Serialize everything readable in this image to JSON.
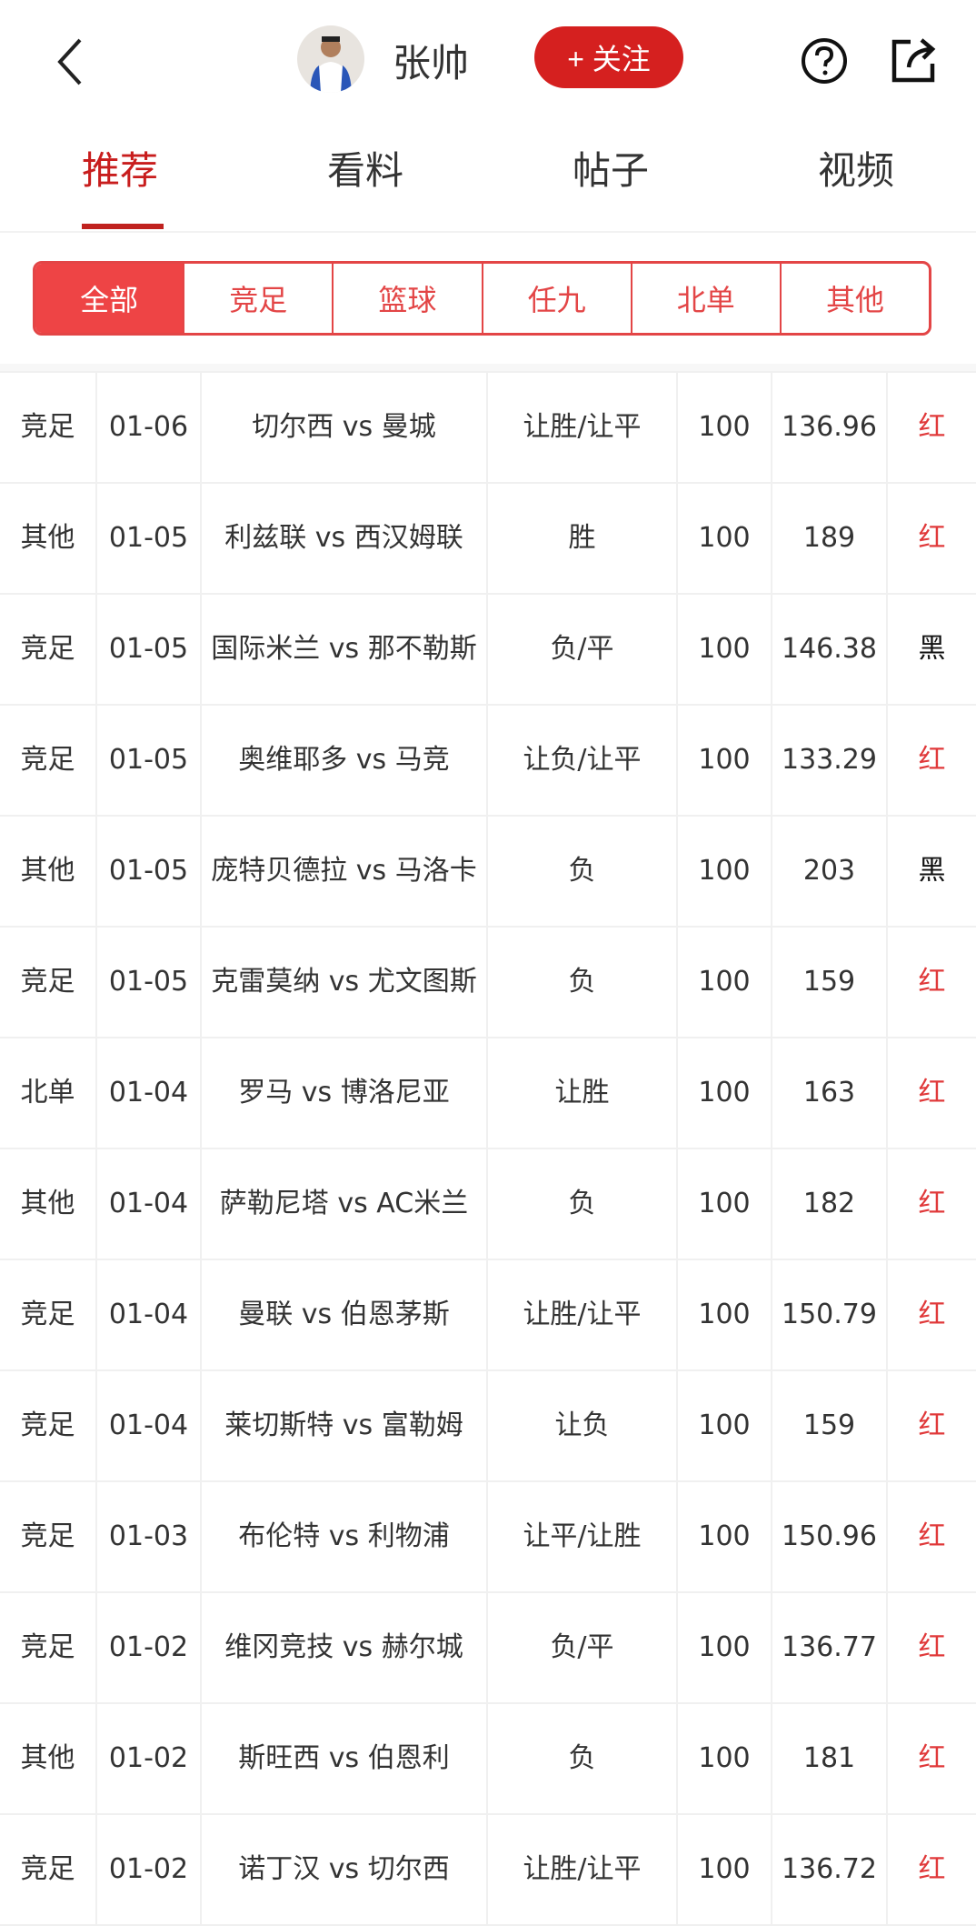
{
  "header": {
    "username": "张帅",
    "follow_label": "+ 关注"
  },
  "tabs": [
    {
      "label": "推荐"
    },
    {
      "label": "看料"
    },
    {
      "label": "帖子"
    },
    {
      "label": "视频"
    }
  ],
  "filters": [
    {
      "label": "全部"
    },
    {
      "label": "竞足"
    },
    {
      "label": "篮球"
    },
    {
      "label": "任九"
    },
    {
      "label": "北单"
    },
    {
      "label": "其他"
    }
  ],
  "rows": [
    [
      "竞足",
      "01-06",
      "切尔西 vs 曼城",
      "让胜/让平",
      "100",
      "136.96",
      "红"
    ],
    [
      "其他",
      "01-05",
      "利兹联 vs 西汉姆联",
      "胜",
      "100",
      "189",
      "红"
    ],
    [
      "竞足",
      "01-05",
      "国际米兰 vs 那不勒斯",
      "负/平",
      "100",
      "146.38",
      "黑"
    ],
    [
      "竞足",
      "01-05",
      "奥维耶多 vs 马竞",
      "让负/让平",
      "100",
      "133.29",
      "红"
    ],
    [
      "其他",
      "01-05",
      "庞特贝德拉 vs 马洛卡",
      "负",
      "100",
      "203",
      "黑"
    ],
    [
      "竞足",
      "01-05",
      "克雷莫纳 vs 尤文图斯",
      "负",
      "100",
      "159",
      "红"
    ],
    [
      "北单",
      "01-04",
      "罗马 vs 博洛尼亚",
      "让胜",
      "100",
      "163",
      "红"
    ],
    [
      "其他",
      "01-04",
      "萨勒尼塔 vs AC米兰",
      "负",
      "100",
      "182",
      "红"
    ],
    [
      "竞足",
      "01-04",
      "曼联 vs 伯恩茅斯",
      "让胜/让平",
      "100",
      "150.79",
      "红"
    ],
    [
      "竞足",
      "01-04",
      "莱切斯特 vs 富勒姆",
      "让负",
      "100",
      "159",
      "红"
    ],
    [
      "竞足",
      "01-03",
      "布伦特 vs 利物浦",
      "让平/让胜",
      "100",
      "150.96",
      "红"
    ],
    [
      "竞足",
      "01-02",
      "维冈竞技 vs 赫尔城",
      "负/平",
      "100",
      "136.77",
      "红"
    ],
    [
      "其他",
      "01-02",
      "斯旺西 vs 伯恩利",
      "负",
      "100",
      "181",
      "红"
    ],
    [
      "竞足",
      "01-02",
      "诺丁汉 vs 切尔西",
      "让胜/让平",
      "100",
      "136.72",
      "红"
    ]
  ],
  "colors": {
    "accent": "#d5201f",
    "filter": "#e34546",
    "win": "#e0393a",
    "loss": "#111111"
  }
}
